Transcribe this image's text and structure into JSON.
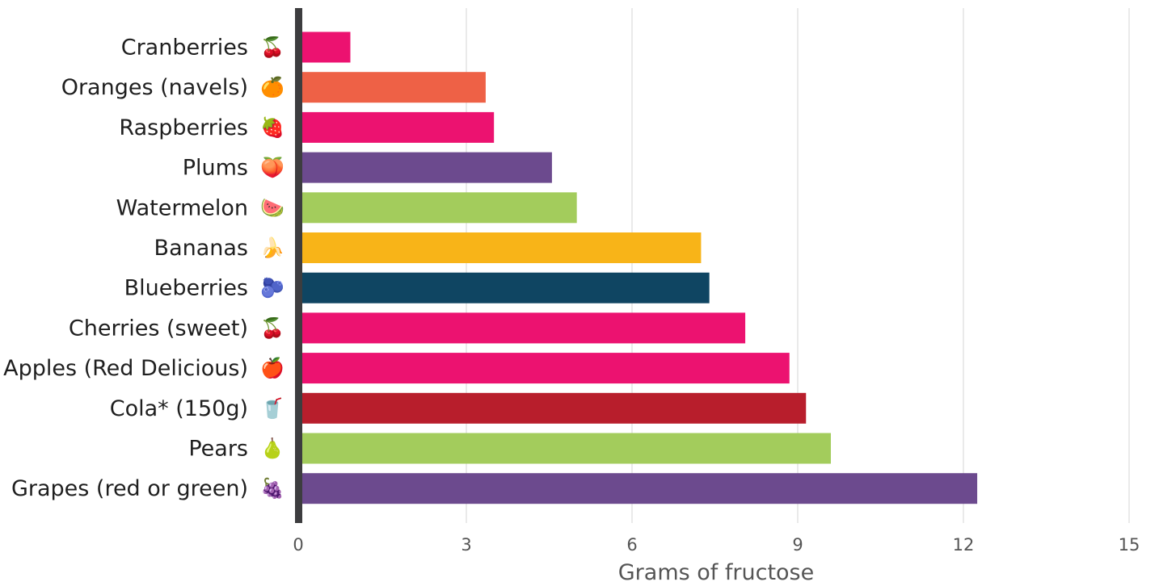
{
  "chart_data": {
    "type": "bar",
    "orientation": "horizontal",
    "title": "",
    "xlabel": "Grams of fructose",
    "ylabel": "",
    "xlim": [
      0,
      15
    ],
    "xticks": [
      0,
      3,
      6,
      9,
      12,
      15
    ],
    "grid": "vertical",
    "legend": "none",
    "categories": [
      "Cranberries",
      "Oranges (navels)",
      "Raspberries",
      "Plums",
      "Watermelon",
      "Bananas",
      "Blueberries",
      "Cherries (sweet)",
      "Apples (Red Delicious)",
      "Cola* (150g)",
      "Pears",
      "Grapes (red or green)"
    ],
    "values": [
      0.9,
      3.35,
      3.5,
      4.55,
      5.0,
      7.25,
      7.4,
      8.05,
      8.85,
      9.15,
      9.6,
      12.25
    ],
    "colors": [
      "#ec1270",
      "#ee6146",
      "#ec1270",
      "#6c4a8e",
      "#a3cc5c",
      "#f8b418",
      "#0f4562",
      "#ec1270",
      "#ec1270",
      "#b81e2c",
      "#a3cc5c",
      "#6c4a8e"
    ],
    "icons": [
      "cranberries-icon",
      "orange-icon",
      "raspberry-icon",
      "plum-icon",
      "watermelon-icon",
      "banana-icon",
      "blueberries-icon",
      "cherries-icon",
      "apple-icon",
      "soda-can-icon",
      "pear-icon",
      "grapes-icon"
    ]
  }
}
